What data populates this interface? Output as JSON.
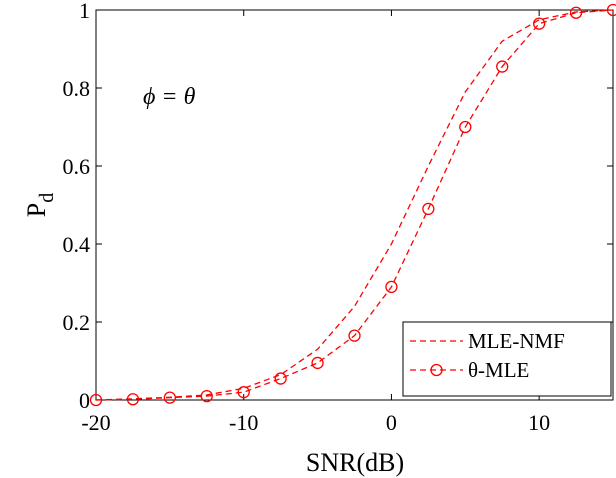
{
  "chart_data": {
    "type": "line",
    "xlabel": "SNR(dB)",
    "ylabel": "P",
    "ylabel_subscript": "d",
    "annotation": "ϕ = θ",
    "xlim": [
      -20,
      15
    ],
    "ylim": [
      0,
      1
    ],
    "xticks": [
      -20,
      -10,
      0,
      10
    ],
    "xtick_labels": [
      "-20",
      "-10",
      "0",
      "10"
    ],
    "yticks": [
      0,
      0.2,
      0.4,
      0.6,
      0.8,
      1
    ],
    "ytick_labels": [
      "0",
      "0.2",
      "0.4",
      "0.6",
      "0.8",
      "1"
    ],
    "grid": false,
    "legend_position": "bottom-right",
    "series": [
      {
        "name": "MLE-NMF",
        "style": "dashed",
        "marker": "none",
        "color": "#ff0000",
        "x": [
          -20,
          -17.5,
          -15,
          -12.5,
          -10,
          -7.5,
          -5,
          -2.5,
          0,
          2.5,
          5,
          7.5,
          10,
          12.5,
          15
        ],
        "y": [
          0.0,
          0.003,
          0.007,
          0.013,
          0.03,
          0.065,
          0.13,
          0.24,
          0.4,
          0.6,
          0.79,
          0.92,
          0.975,
          0.995,
          1.0
        ]
      },
      {
        "name": "θ-MLE",
        "style": "dashed",
        "marker": "circle",
        "color": "#ff0000",
        "x": [
          -20,
          -17.5,
          -15,
          -12.5,
          -10,
          -7.5,
          -5,
          -2.5,
          0,
          2.5,
          5,
          7.5,
          10,
          12.5,
          15
        ],
        "y": [
          0.0,
          0.002,
          0.006,
          0.01,
          0.02,
          0.055,
          0.095,
          0.165,
          0.29,
          0.49,
          0.7,
          0.855,
          0.965,
          0.993,
          1.0
        ]
      }
    ]
  }
}
